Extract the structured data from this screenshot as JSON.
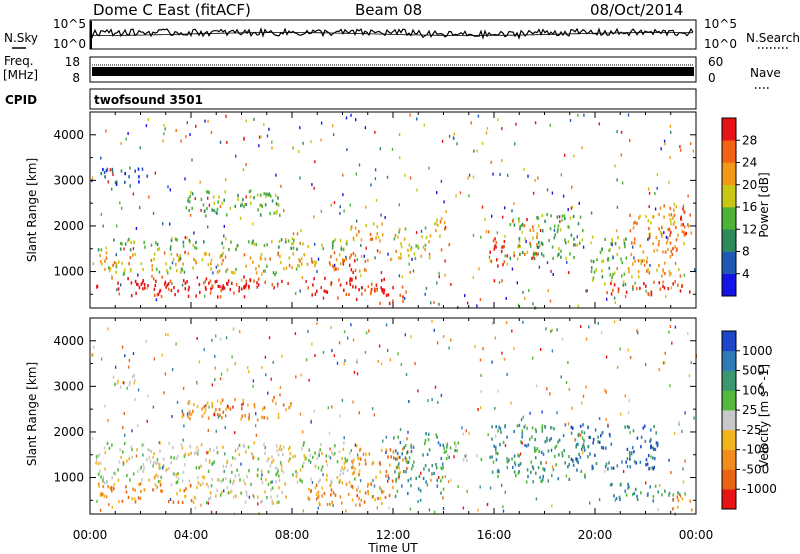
{
  "header": {
    "title": "Dome C East (fitACF)",
    "beam": "Beam 08",
    "date": "08/Oct/2014"
  },
  "noise_panel": {
    "left_label": "N.Sky",
    "right_label": "N.Search",
    "left_ticks": [
      "10^5",
      "10^0"
    ],
    "right_ticks": [
      "10^5",
      "10^0"
    ]
  },
  "freq_panel": {
    "left_label_top": "Freq.",
    "left_label_unit": "[MHz]",
    "left_ticks": [
      "18",
      "8"
    ],
    "right_label": "Nave",
    "right_ticks": [
      "60",
      "0"
    ]
  },
  "cpid": {
    "label": "CPID",
    "program": "twofsound 3501"
  },
  "chart_data": [
    {
      "type": "heatmap",
      "name": "power",
      "ylabel": "Slant Range [km]",
      "ylim": [
        200,
        4500
      ],
      "y_ticks": [
        1000,
        2000,
        3000,
        4000
      ],
      "xlabel": "Time UT",
      "x_ticks": [
        "00:00",
        "04:00",
        "08:00",
        "12:00",
        "16:00",
        "20:00",
        "00:00"
      ],
      "xlim_hours": [
        0,
        24
      ],
      "colorbar": {
        "label": "Power [dB]",
        "ticks": [
          "4",
          "8",
          "12",
          "16",
          "20",
          "24",
          "28"
        ],
        "colors": [
          "#1414e6",
          "#1e5ab4",
          "#2e8a5a",
          "#4fb33a",
          "#c8c814",
          "#f29a18",
          "#f26414",
          "#e61414"
        ]
      },
      "bands": [
        {
          "t0": 0.2,
          "t1": 7.6,
          "r0": 600,
          "r1": 900,
          "level": 7
        },
        {
          "t0": 1.6,
          "t1": 6.2,
          "r0": 450,
          "r1": 800,
          "level": 7
        },
        {
          "t0": 0.3,
          "t1": 10.5,
          "r0": 1150,
          "r1": 1450,
          "level": 5
        },
        {
          "t0": 0.3,
          "t1": 10.8,
          "r0": 1500,
          "r1": 1750,
          "level": 3
        },
        {
          "t0": 0.4,
          "t1": 8.5,
          "r0": 950,
          "r1": 1150,
          "level": 4
        },
        {
          "t0": 8.6,
          "t1": 11.8,
          "r0": 400,
          "r1": 900,
          "level": 7
        },
        {
          "t0": 9.5,
          "t1": 11.2,
          "r0": 900,
          "r1": 1300,
          "level": 6
        },
        {
          "t0": 10.3,
          "t1": 11.6,
          "r0": 1700,
          "r1": 2200,
          "level": 5
        },
        {
          "t0": 11.2,
          "t1": 12.6,
          "r0": 300,
          "r1": 700,
          "level": 7
        },
        {
          "t0": 12.0,
          "t1": 13.5,
          "r0": 1300,
          "r1": 2000,
          "level": 4
        },
        {
          "t0": 13.6,
          "t1": 14.2,
          "r0": 1500,
          "r1": 2200,
          "level": 5
        },
        {
          "t0": 15.8,
          "t1": 16.5,
          "r0": 800,
          "r1": 1800,
          "level": 7
        },
        {
          "t0": 16.6,
          "t1": 19.5,
          "r0": 1300,
          "r1": 2300,
          "level": 3
        },
        {
          "t0": 17.1,
          "t1": 17.7,
          "r0": 1300,
          "r1": 2200,
          "level": 6
        },
        {
          "t0": 19.8,
          "t1": 21.3,
          "r0": 700,
          "r1": 1800,
          "level": 3
        },
        {
          "t0": 20.3,
          "t1": 23.8,
          "r0": 500,
          "r1": 800,
          "level": 7
        },
        {
          "t0": 21.3,
          "t1": 23.5,
          "r0": 900,
          "r1": 2300,
          "level": 5
        },
        {
          "t0": 22.5,
          "t1": 23.8,
          "r0": 1800,
          "r1": 2500,
          "level": 6
        },
        {
          "t0": 0.4,
          "t1": 2.3,
          "r0": 2900,
          "r1": 3300,
          "level": 1
        },
        {
          "t0": 3.5,
          "t1": 7.5,
          "r0": 2200,
          "r1": 2800,
          "level": 3
        }
      ]
    },
    {
      "type": "heatmap",
      "name": "velocity",
      "ylabel": "Slant Range [km]",
      "ylim": [
        200,
        4500
      ],
      "y_ticks": [
        1000,
        2000,
        3000,
        4000
      ],
      "xlabel": "Time UT",
      "x_ticks": [
        "00:00",
        "04:00",
        "08:00",
        "12:00",
        "16:00",
        "20:00",
        "00:00"
      ],
      "xlim_hours": [
        0,
        24
      ],
      "colorbar": {
        "label": "Velocity [m s^-1]",
        "ticks": [
          "1000",
          "500",
          "100",
          "25",
          "-25",
          "-100",
          "-500",
          "-1000"
        ],
        "colors": [
          "#1e46c8",
          "#2e7ab4",
          "#3c9670",
          "#54b83c",
          "#c8c8c8",
          "#f2b41e",
          "#f28c1e",
          "#e66414",
          "#e61414"
        ]
      },
      "bands": [
        {
          "t0": 0.2,
          "t1": 10.5,
          "r0": 900,
          "r1": 1800,
          "level": 4
        },
        {
          "t0": 0.3,
          "t1": 4.0,
          "r0": 450,
          "r1": 900,
          "level": 6
        },
        {
          "t0": 4.0,
          "t1": 7.8,
          "r0": 450,
          "r1": 900,
          "level": 4
        },
        {
          "t0": 8.6,
          "t1": 12.0,
          "r0": 400,
          "r1": 1000,
          "level": 6
        },
        {
          "t0": 10.3,
          "t1": 12.6,
          "r0": 1000,
          "r1": 1700,
          "level": 6
        },
        {
          "t0": 12.0,
          "t1": 14.0,
          "r0": 600,
          "r1": 2000,
          "level": 2
        },
        {
          "t0": 14.0,
          "t1": 15.5,
          "r0": 1400,
          "r1": 1800,
          "level": 3
        },
        {
          "t0": 15.8,
          "t1": 19.6,
          "r0": 900,
          "r1": 2200,
          "level": 2
        },
        {
          "t0": 19.0,
          "t1": 22.5,
          "r0": 1200,
          "r1": 2200,
          "level": 1
        },
        {
          "t0": 20.5,
          "t1": 23.6,
          "r0": 500,
          "r1": 900,
          "level": 2
        },
        {
          "t0": 23.0,
          "t1": 23.9,
          "r0": 300,
          "r1": 600,
          "level": 6
        },
        {
          "t0": 0.8,
          "t1": 1.8,
          "r0": 2900,
          "r1": 3300,
          "level": 4
        },
        {
          "t0": 3.5,
          "t1": 8.0,
          "r0": 2300,
          "r1": 2800,
          "level": 6
        }
      ]
    }
  ]
}
